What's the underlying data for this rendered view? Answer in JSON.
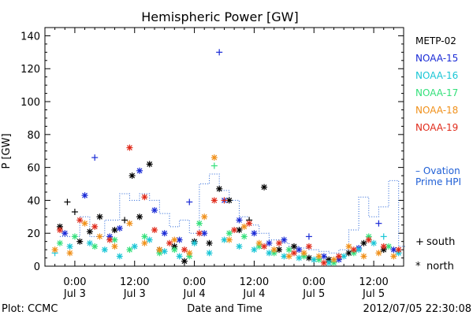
{
  "chart_data": {
    "type": "scatter",
    "title": "Hemispheric Power [GW]",
    "ylabel": "P [GW]",
    "xlabel": "Date and Time",
    "ylim": [
      0,
      145
    ],
    "yticks": [
      0,
      20,
      40,
      60,
      80,
      100,
      120,
      140
    ],
    "xlim_hours": [
      -6,
      66
    ],
    "xticks": [
      {
        "h": 0,
        "time": "0:00",
        "date": "Jul 3"
      },
      {
        "h": 12,
        "time": "12:00",
        "date": "Jul 3"
      },
      {
        "h": 24,
        "time": "0:00",
        "date": "Jul 4"
      },
      {
        "h": 36,
        "time": "12:00",
        "date": "Jul 4"
      },
      {
        "h": 48,
        "time": "0:00",
        "date": "Jul 5"
      },
      {
        "h": 60,
        "time": "12:00",
        "date": "Jul 5"
      }
    ],
    "footer_left": "Plot: CCMC",
    "footer_right": "2012/07/05 22:30:08",
    "marker_legend": [
      {
        "symbol": "+",
        "label": "south"
      },
      {
        "symbol": "*",
        "label": "north"
      }
    ],
    "ovation": {
      "name": "— Ovation Prime HPI",
      "line1": "– Ovation",
      "line2": "Prime HPI",
      "color": "#1f5fd6",
      "points": [
        {
          "h": -3,
          "y": 18
        },
        {
          "h": 1,
          "y": 30
        },
        {
          "h": 3,
          "y": 18
        },
        {
          "h": 6,
          "y": 28
        },
        {
          "h": 9,
          "y": 44
        },
        {
          "h": 11,
          "y": 40
        },
        {
          "h": 13,
          "y": 44
        },
        {
          "h": 15,
          "y": 40
        },
        {
          "h": 17,
          "y": 32
        },
        {
          "h": 19,
          "y": 24
        },
        {
          "h": 21,
          "y": 28
        },
        {
          "h": 23,
          "y": 20
        },
        {
          "h": 25,
          "y": 50
        },
        {
          "h": 27,
          "y": 56
        },
        {
          "h": 29,
          "y": 46
        },
        {
          "h": 31,
          "y": 40
        },
        {
          "h": 33,
          "y": 30
        },
        {
          "h": 35,
          "y": 25
        },
        {
          "h": 37,
          "y": 20
        },
        {
          "h": 39,
          "y": 16
        },
        {
          "h": 41,
          "y": 14
        },
        {
          "h": 43,
          "y": 12
        },
        {
          "h": 45,
          "y": 11
        },
        {
          "h": 47,
          "y": 10
        },
        {
          "h": 49,
          "y": 9
        },
        {
          "h": 51,
          "y": 8
        },
        {
          "h": 53,
          "y": 10
        },
        {
          "h": 55,
          "y": 22
        },
        {
          "h": 57,
          "y": 42
        },
        {
          "h": 59,
          "y": 30
        },
        {
          "h": 61,
          "y": 36
        },
        {
          "h": 63,
          "y": 52
        },
        {
          "h": 65,
          "y": 12
        }
      ]
    },
    "series": [
      {
        "name": "METP-02",
        "color": "#000000",
        "points": [
          {
            "h": -3,
            "y": 24,
            "m": "*"
          },
          {
            "h": -1.5,
            "y": 39,
            "m": "+"
          },
          {
            "h": 0,
            "y": 33,
            "m": "+"
          },
          {
            "h": 1,
            "y": 15,
            "m": "*"
          },
          {
            "h": 3,
            "y": 21,
            "m": "*"
          },
          {
            "h": 5,
            "y": 30,
            "m": "*"
          },
          {
            "h": 8,
            "y": 22,
            "m": "*"
          },
          {
            "h": 10,
            "y": 28,
            "m": "+"
          },
          {
            "h": 11.5,
            "y": 55,
            "m": "*"
          },
          {
            "h": 13,
            "y": 30,
            "m": "*"
          },
          {
            "h": 15,
            "y": 62,
            "m": "*"
          },
          {
            "h": 17,
            "y": 10,
            "m": "*"
          },
          {
            "h": 20,
            "y": 12,
            "m": "*"
          },
          {
            "h": 22,
            "y": 3,
            "m": "*"
          },
          {
            "h": 24,
            "y": 15,
            "m": "*"
          },
          {
            "h": 27,
            "y": 14,
            "m": "*"
          },
          {
            "h": 29,
            "y": 47,
            "m": "*"
          },
          {
            "h": 31,
            "y": 40,
            "m": "*"
          },
          {
            "h": 33,
            "y": 22,
            "m": "*"
          },
          {
            "h": 35,
            "y": 28,
            "m": "+"
          },
          {
            "h": 38,
            "y": 48,
            "m": "*"
          },
          {
            "h": 41,
            "y": 10,
            "m": "*"
          },
          {
            "h": 44,
            "y": 12,
            "m": "*"
          },
          {
            "h": 47,
            "y": 5,
            "m": "*"
          },
          {
            "h": 51,
            "y": 4,
            "m": "*"
          },
          {
            "h": 55,
            "y": 8,
            "m": "*"
          },
          {
            "h": 58,
            "y": 14,
            "m": "*"
          },
          {
            "h": 62,
            "y": 10,
            "m": "*"
          }
        ]
      },
      {
        "name": "NOAA-15",
        "color": "#1a2bd6",
        "points": [
          {
            "h": -2,
            "y": 20,
            "m": "*"
          },
          {
            "h": 2,
            "y": 43,
            "m": "*"
          },
          {
            "h": 4,
            "y": 66,
            "m": "+"
          },
          {
            "h": 7,
            "y": 18,
            "m": "*"
          },
          {
            "h": 9,
            "y": 23,
            "m": "*"
          },
          {
            "h": 13,
            "y": 58,
            "m": "*"
          },
          {
            "h": 16,
            "y": 34,
            "m": "*"
          },
          {
            "h": 18,
            "y": 20,
            "m": "*"
          },
          {
            "h": 21,
            "y": 16,
            "m": "*"
          },
          {
            "h": 23,
            "y": 39,
            "m": "+"
          },
          {
            "h": 26,
            "y": 20,
            "m": "*"
          },
          {
            "h": 29,
            "y": 130,
            "m": "+"
          },
          {
            "h": 30,
            "y": 40,
            "m": "*"
          },
          {
            "h": 33,
            "y": 28,
            "m": "*"
          },
          {
            "h": 36,
            "y": 20,
            "m": "*"
          },
          {
            "h": 39,
            "y": 14,
            "m": "*"
          },
          {
            "h": 42,
            "y": 16,
            "m": "*"
          },
          {
            "h": 45,
            "y": 10,
            "m": "*"
          },
          {
            "h": 47,
            "y": 18,
            "m": "+"
          },
          {
            "h": 50,
            "y": 6,
            "m": "*"
          },
          {
            "h": 53,
            "y": 4,
            "m": "*"
          },
          {
            "h": 57,
            "y": 11,
            "m": "*"
          },
          {
            "h": 61,
            "y": 26,
            "m": "+"
          },
          {
            "h": 64,
            "y": 10,
            "m": "*"
          }
        ]
      },
      {
        "name": "NOAA-16",
        "color": "#19c6d6",
        "points": [
          {
            "h": -4,
            "y": 8,
            "m": "+"
          },
          {
            "h": -1,
            "y": 12,
            "m": "*"
          },
          {
            "h": 3,
            "y": 14,
            "m": "*"
          },
          {
            "h": 6,
            "y": 10,
            "m": "*"
          },
          {
            "h": 9,
            "y": 6,
            "m": "*"
          },
          {
            "h": 12,
            "y": 12,
            "m": "*"
          },
          {
            "h": 15,
            "y": 16,
            "m": "*"
          },
          {
            "h": 18,
            "y": 9,
            "m": "*"
          },
          {
            "h": 21,
            "y": 6,
            "m": "*"
          },
          {
            "h": 24,
            "y": 14,
            "m": "*"
          },
          {
            "h": 27,
            "y": 8,
            "m": "*"
          },
          {
            "h": 30,
            "y": 16,
            "m": "*"
          },
          {
            "h": 33,
            "y": 12,
            "m": "*"
          },
          {
            "h": 36,
            "y": 10,
            "m": "*"
          },
          {
            "h": 39,
            "y": 8,
            "m": "*"
          },
          {
            "h": 42,
            "y": 6,
            "m": "*"
          },
          {
            "h": 45,
            "y": 5,
            "m": "*"
          },
          {
            "h": 48,
            "y": 4,
            "m": "*"
          },
          {
            "h": 51,
            "y": 2,
            "m": "*"
          },
          {
            "h": 54,
            "y": 6,
            "m": "*"
          },
          {
            "h": 57,
            "y": 10,
            "m": "*"
          },
          {
            "h": 60,
            "y": 14,
            "m": "*"
          },
          {
            "h": 62,
            "y": 18,
            "m": "+"
          },
          {
            "h": 65,
            "y": 8,
            "m": "*"
          }
        ]
      },
      {
        "name": "NOAA-17",
        "color": "#33e07a",
        "points": [
          {
            "h": -3,
            "y": 14,
            "m": "*"
          },
          {
            "h": 0,
            "y": 18,
            "m": "*"
          },
          {
            "h": 4,
            "y": 12,
            "m": "*"
          },
          {
            "h": 8,
            "y": 16,
            "m": "*"
          },
          {
            "h": 11,
            "y": 10,
            "m": "*"
          },
          {
            "h": 14,
            "y": 18,
            "m": "*"
          },
          {
            "h": 17,
            "y": 8,
            "m": "*"
          },
          {
            "h": 20,
            "y": 10,
            "m": "*"
          },
          {
            "h": 23,
            "y": 6,
            "m": "*"
          },
          {
            "h": 25,
            "y": 26,
            "m": "*"
          },
          {
            "h": 28,
            "y": 61,
            "m": "+"
          },
          {
            "h": 31,
            "y": 20,
            "m": "*"
          },
          {
            "h": 34,
            "y": 18,
            "m": "*"
          },
          {
            "h": 37,
            "y": 12,
            "m": "*"
          },
          {
            "h": 40,
            "y": 8,
            "m": "*"
          },
          {
            "h": 43,
            "y": 10,
            "m": "*"
          },
          {
            "h": 46,
            "y": 6,
            "m": "*"
          },
          {
            "h": 49,
            "y": 4,
            "m": "*"
          },
          {
            "h": 52,
            "y": 2,
            "m": "*"
          },
          {
            "h": 56,
            "y": 8,
            "m": "*"
          },
          {
            "h": 59,
            "y": 18,
            "m": "*"
          },
          {
            "h": 63,
            "y": 12,
            "m": "*"
          }
        ]
      },
      {
        "name": "NOAA-18",
        "color": "#f0901a",
        "points": [
          {
            "h": -4,
            "y": 10,
            "m": "*"
          },
          {
            "h": -1,
            "y": 8,
            "m": "*"
          },
          {
            "h": 2,
            "y": 26,
            "m": "*"
          },
          {
            "h": 5,
            "y": 18,
            "m": "*"
          },
          {
            "h": 8,
            "y": 12,
            "m": "*"
          },
          {
            "h": 11,
            "y": 26,
            "m": "*"
          },
          {
            "h": 14,
            "y": 14,
            "m": "*"
          },
          {
            "h": 17,
            "y": 10,
            "m": "*"
          },
          {
            "h": 20,
            "y": 16,
            "m": "*"
          },
          {
            "h": 23,
            "y": 8,
            "m": "*"
          },
          {
            "h": 26,
            "y": 30,
            "m": "*"
          },
          {
            "h": 28,
            "y": 66,
            "m": "*"
          },
          {
            "h": 31,
            "y": 16,
            "m": "*"
          },
          {
            "h": 34,
            "y": 24,
            "m": "*"
          },
          {
            "h": 37,
            "y": 14,
            "m": "*"
          },
          {
            "h": 40,
            "y": 10,
            "m": "*"
          },
          {
            "h": 43,
            "y": 6,
            "m": "*"
          },
          {
            "h": 46,
            "y": 8,
            "m": "*"
          },
          {
            "h": 49,
            "y": 6,
            "m": "*"
          },
          {
            "h": 52,
            "y": 4,
            "m": "*"
          },
          {
            "h": 55,
            "y": 12,
            "m": "*"
          },
          {
            "h": 58,
            "y": 6,
            "m": "*"
          },
          {
            "h": 61,
            "y": 8,
            "m": "*"
          },
          {
            "h": 64,
            "y": 6,
            "m": "*"
          }
        ]
      },
      {
        "name": "NOAA-19",
        "color": "#e02a1a",
        "points": [
          {
            "h": -3,
            "y": 22,
            "m": "*"
          },
          {
            "h": 1,
            "y": 28,
            "m": "*"
          },
          {
            "h": 4,
            "y": 24,
            "m": "*"
          },
          {
            "h": 7,
            "y": 16,
            "m": "*"
          },
          {
            "h": 11,
            "y": 72,
            "m": "*"
          },
          {
            "h": 14,
            "y": 42,
            "m": "*"
          },
          {
            "h": 16,
            "y": 22,
            "m": "*"
          },
          {
            "h": 19,
            "y": 14,
            "m": "*"
          },
          {
            "h": 22,
            "y": 10,
            "m": "*"
          },
          {
            "h": 25,
            "y": 20,
            "m": "*"
          },
          {
            "h": 28,
            "y": 40,
            "m": "*"
          },
          {
            "h": 30,
            "y": 40,
            "m": "+"
          },
          {
            "h": 32,
            "y": 22,
            "m": "*"
          },
          {
            "h": 35,
            "y": 26,
            "m": "*"
          },
          {
            "h": 38,
            "y": 12,
            "m": "*"
          },
          {
            "h": 41,
            "y": 14,
            "m": "*"
          },
          {
            "h": 44,
            "y": 8,
            "m": "*"
          },
          {
            "h": 47,
            "y": 12,
            "m": "*"
          },
          {
            "h": 50,
            "y": 2,
            "m": "*"
          },
          {
            "h": 53,
            "y": 6,
            "m": "*"
          },
          {
            "h": 56,
            "y": 10,
            "m": "*"
          },
          {
            "h": 59,
            "y": 16,
            "m": "*"
          },
          {
            "h": 62,
            "y": 12,
            "m": "*"
          },
          {
            "h": 65,
            "y": 10,
            "m": "*"
          }
        ]
      }
    ]
  }
}
